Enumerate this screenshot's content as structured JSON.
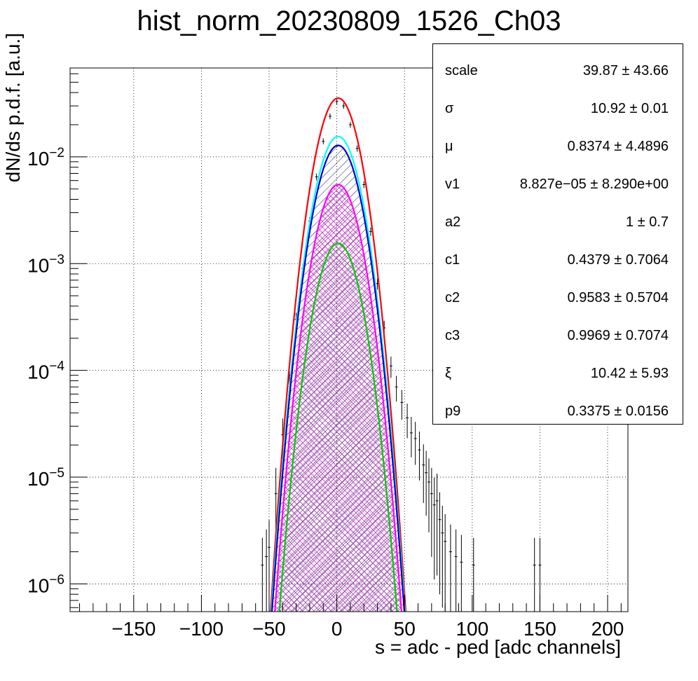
{
  "title": "hist_norm_20230809_1526_Ch03",
  "chart_data": {
    "type": "histogram",
    "title": "hist_norm_20230809_1526_Ch03",
    "xlabel": "s = adc - ped [adc channels]",
    "ylabel": "dN/ds p.d.f. [a.u.]",
    "xlim": [
      -197,
      215
    ],
    "ylim": [
      5.5e-07,
      0.068
    ],
    "yscale": "log",
    "grid": true,
    "x_ticks": [
      {
        "value": -150,
        "label": "−150"
      },
      {
        "value": -100,
        "label": "−100"
      },
      {
        "value": -50,
        "label": "−50"
      },
      {
        "value": 0,
        "label": "0"
      },
      {
        "value": 50,
        "label": "50"
      },
      {
        "value": 100,
        "label": "100"
      },
      {
        "value": 150,
        "label": "150"
      },
      {
        "value": 200,
        "label": "200"
      }
    ],
    "y_ticks": [
      {
        "value": 0.01,
        "base": "10",
        "exp": "−2"
      },
      {
        "value": 0.001,
        "base": "10",
        "exp": "−3"
      },
      {
        "value": 0.0001,
        "base": "10",
        "exp": "−4"
      },
      {
        "value": 1e-05,
        "base": "10",
        "exp": "−5"
      },
      {
        "value": 1e-06,
        "base": "10",
        "exp": "−6"
      }
    ],
    "curves": [
      {
        "color": "#ff0000",
        "peak_x": 1,
        "peak_y": 0.0355,
        "sigma": 10.6
      },
      {
        "color": "#00ffff",
        "peak_x": 1,
        "peak_y": 0.0155,
        "sigma": 10.9
      },
      {
        "color": "#0000cc",
        "peak_x": 1,
        "peak_y": 0.0128,
        "sigma": 10.9,
        "fill": "diag-dark-blue"
      },
      {
        "color": "#ff00ff",
        "peak_x": 1,
        "peak_y": 0.0055,
        "sigma": 10.9,
        "fill": "cross-magenta"
      },
      {
        "color": "#00cc00",
        "peak_x": 1,
        "peak_y": 0.00155,
        "sigma": 10.9,
        "fill": "diag-green"
      }
    ],
    "data_points": [
      {
        "x": -55,
        "y": 1.5e-06
      },
      {
        "x": -52,
        "y": 1.8e-06
      },
      {
        "x": -50,
        "y": 2.2e-06
      },
      {
        "x": -45,
        "y": 7e-06
      },
      {
        "x": -40,
        "y": 2.5e-05
      },
      {
        "x": -35,
        "y": 9e-05
      },
      {
        "x": -30,
        "y": 0.0003
      },
      {
        "x": -25,
        "y": 0.0009
      },
      {
        "x": -20,
        "y": 0.0025
      },
      {
        "x": -15,
        "y": 0.0065
      },
      {
        "x": -10,
        "y": 0.014
      },
      {
        "x": -5,
        "y": 0.024
      },
      {
        "x": 0,
        "y": 0.033
      },
      {
        "x": 5,
        "y": 0.03
      },
      {
        "x": 10,
        "y": 0.02
      },
      {
        "x": 15,
        "y": 0.012
      },
      {
        "x": 20,
        "y": 0.0055
      },
      {
        "x": 25,
        "y": 0.002
      },
      {
        "x": 30,
        "y": 0.00065
      },
      {
        "x": 35,
        "y": 0.00025
      },
      {
        "x": 40,
        "y": 0.00011
      },
      {
        "x": 44,
        "y": 7e-05
      },
      {
        "x": 48,
        "y": 5e-05
      },
      {
        "x": 52,
        "y": 3.6e-05
      },
      {
        "x": 55,
        "y": 2.6e-05
      },
      {
        "x": 58,
        "y": 2.3e-05
      },
      {
        "x": 61,
        "y": 1.8e-05
      },
      {
        "x": 64,
        "y": 1.3e-05
      },
      {
        "x": 66,
        "y": 1.1e-05
      },
      {
        "x": 68,
        "y": 9e-06
      },
      {
        "x": 70,
        "y": 7e-06
      },
      {
        "x": 72,
        "y": 5.5e-06
      },
      {
        "x": 74,
        "y": 6e-06
      },
      {
        "x": 76,
        "y": 4e-06
      },
      {
        "x": 78,
        "y": 3e-06
      },
      {
        "x": 80,
        "y": 2.5e-06
      },
      {
        "x": 84,
        "y": 2e-06
      },
      {
        "x": 88,
        "y": 1.8e-06
      },
      {
        "x": 92,
        "y": 1.6e-06
      },
      {
        "x": 101,
        "y": 1.5e-06
      },
      {
        "x": 146,
        "y": 1.5e-06
      },
      {
        "x": 150,
        "y": 1.5e-06
      }
    ]
  },
  "stats": [
    {
      "name": "scale",
      "value": "39.87  ± 43.66"
    },
    {
      "name": "σ",
      "value": "10.92  ± 0.01"
    },
    {
      "name": "μ",
      "value": "0.8374  ± 4.4896"
    },
    {
      "name": "v1",
      "value": "8.827e−05 ± 8.290e+00"
    },
    {
      "name": "a2",
      "value": "1 ± 0.7"
    },
    {
      "name": "c1",
      "value": "0.4379  ± 0.7064"
    },
    {
      "name": "c2",
      "value": "0.9583  ± 0.5704"
    },
    {
      "name": "c3",
      "value": "0.9969  ± 0.7074"
    },
    {
      "name": "ξ",
      "value": "10.42  ± 5.93"
    },
    {
      "name": "p9",
      "value": "0.3375  ± 0.0156"
    }
  ]
}
